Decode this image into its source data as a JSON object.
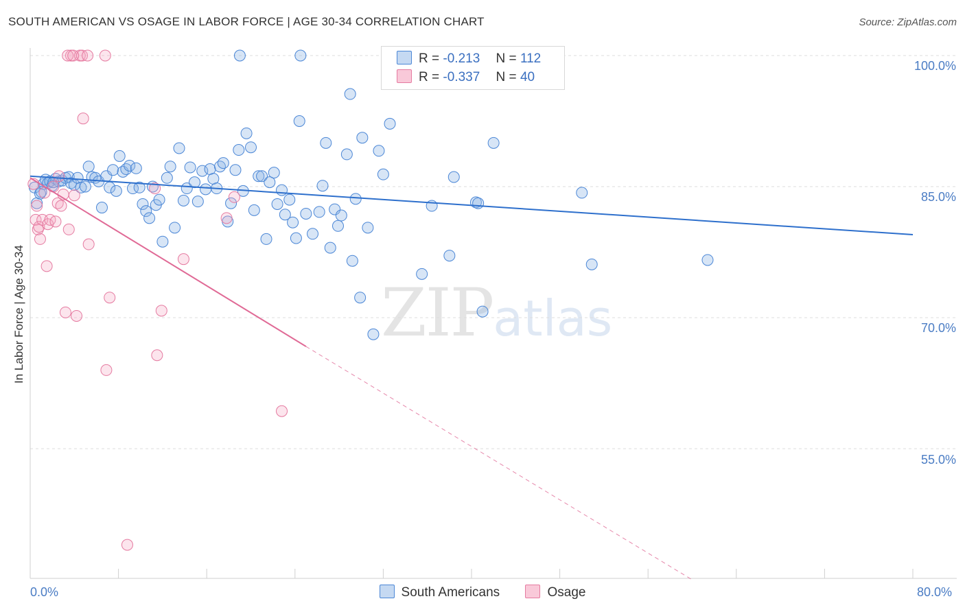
{
  "title": "SOUTH AMERICAN VS OSAGE IN LABOR FORCE | AGE 30-34 CORRELATION CHART",
  "source": "Source: ZipAtlas.com",
  "watermark": {
    "zip": "ZIP",
    "atlas": "atlas"
  },
  "legend": {
    "r_label": "R =",
    "n_label": "N =",
    "series1": {
      "r": "-0.213",
      "n": "112"
    },
    "series2": {
      "r": "-0.337",
      "n": "40"
    }
  },
  "chart_data": {
    "type": "scatter",
    "title": "SOUTH AMERICAN VS OSAGE IN LABOR FORCE | AGE 30-34 CORRELATION CHART",
    "xlabel": "",
    "ylabel": "In Labor Force | Age 30-34",
    "xlim": [
      0,
      80
    ],
    "ylim": [
      40,
      101
    ],
    "x_tick_labels": [
      "0.0%",
      "80.0%"
    ],
    "y_tick_labels": [
      "100.0%",
      "85.0%",
      "70.0%",
      "55.0%"
    ],
    "y_ticks": [
      100,
      85,
      70,
      55
    ],
    "colors": {
      "south_americans": "#4a86d6",
      "osage": "#e57aa0",
      "blue_line": "#2d6fcc",
      "pink_line": "#e06a96"
    },
    "series": [
      {
        "name": "South Americans",
        "trend": {
          "x": [
            0,
            80
          ],
          "y": [
            86.2,
            79.5
          ]
        },
        "points": [
          [
            0.4,
            84.9
          ],
          [
            0.6,
            83.1
          ],
          [
            0.9,
            84.2
          ],
          [
            1.2,
            85.3
          ],
          [
            1.4,
            85.8
          ],
          [
            1.6,
            85.4
          ],
          [
            1.8,
            85.6
          ],
          [
            2.0,
            85.1
          ],
          [
            2.3,
            85.9
          ],
          [
            2.6,
            85.6
          ],
          [
            2.9,
            85.7
          ],
          [
            3.2,
            86.0
          ],
          [
            3.5,
            86.1
          ],
          [
            3.7,
            85.4
          ],
          [
            4.0,
            85.2
          ],
          [
            4.3,
            86.0
          ],
          [
            4.6,
            84.9
          ],
          [
            5.0,
            85.0
          ],
          [
            5.3,
            87.3
          ],
          [
            5.6,
            86.1
          ],
          [
            5.9,
            86.0
          ],
          [
            6.2,
            85.6
          ],
          [
            6.5,
            82.6
          ],
          [
            6.9,
            86.2
          ],
          [
            7.2,
            84.9
          ],
          [
            7.5,
            86.9
          ],
          [
            7.8,
            84.5
          ],
          [
            8.1,
            88.5
          ],
          [
            8.4,
            86.7
          ],
          [
            8.7,
            87.0
          ],
          [
            9.0,
            87.4
          ],
          [
            9.3,
            84.8
          ],
          [
            9.6,
            87.1
          ],
          [
            9.9,
            84.9
          ],
          [
            10.2,
            83.0
          ],
          [
            10.5,
            82.2
          ],
          [
            10.8,
            81.4
          ],
          [
            11.1,
            85.0
          ],
          [
            11.4,
            82.9
          ],
          [
            11.7,
            83.5
          ],
          [
            12.0,
            78.7
          ],
          [
            12.4,
            86.0
          ],
          [
            12.7,
            87.3
          ],
          [
            13.1,
            80.3
          ],
          [
            13.5,
            89.4
          ],
          [
            13.9,
            83.4
          ],
          [
            14.2,
            84.8
          ],
          [
            14.5,
            87.2
          ],
          [
            14.9,
            85.5
          ],
          [
            15.2,
            83.3
          ],
          [
            15.6,
            86.8
          ],
          [
            15.9,
            84.7
          ],
          [
            16.3,
            87.0
          ],
          [
            16.6,
            85.9
          ],
          [
            16.9,
            84.8
          ],
          [
            17.2,
            87.3
          ],
          [
            17.5,
            87.7
          ],
          [
            17.9,
            81.0
          ],
          [
            18.2,
            83.1
          ],
          [
            18.6,
            86.9
          ],
          [
            18.9,
            89.2
          ],
          [
            19.3,
            84.5
          ],
          [
            19.6,
            91.1
          ],
          [
            20.0,
            89.5
          ],
          [
            20.3,
            82.3
          ],
          [
            20.7,
            86.2
          ],
          [
            21.0,
            86.2
          ],
          [
            21.4,
            79.0
          ],
          [
            21.7,
            85.5
          ],
          [
            22.1,
            86.6
          ],
          [
            22.4,
            83.0
          ],
          [
            22.8,
            84.6
          ],
          [
            23.1,
            81.8
          ],
          [
            23.5,
            83.5
          ],
          [
            23.8,
            80.9
          ],
          [
            24.1,
            79.1
          ],
          [
            24.4,
            92.5
          ],
          [
            25.0,
            81.9
          ],
          [
            25.6,
            79.6
          ],
          [
            26.2,
            82.1
          ],
          [
            26.5,
            85.1
          ],
          [
            26.8,
            90.0
          ],
          [
            27.2,
            78.0
          ],
          [
            27.6,
            82.4
          ],
          [
            27.9,
            80.5
          ],
          [
            28.2,
            81.7
          ],
          [
            28.7,
            88.7
          ],
          [
            29.0,
            95.6
          ],
          [
            29.2,
            76.5
          ],
          [
            29.5,
            83.6
          ],
          [
            29.9,
            72.3
          ],
          [
            30.1,
            90.6
          ],
          [
            30.6,
            80.3
          ],
          [
            31.1,
            68.1
          ],
          [
            31.6,
            89.1
          ],
          [
            32.0,
            86.4
          ],
          [
            32.6,
            92.2
          ],
          [
            19.0,
            100.0
          ],
          [
            24.5,
            100.0
          ],
          [
            35.5,
            75.0
          ],
          [
            36.4,
            82.8
          ],
          [
            38.0,
            77.1
          ],
          [
            38.4,
            86.1
          ],
          [
            40.4,
            83.2
          ],
          [
            40.6,
            83.1
          ],
          [
            41.0,
            70.7
          ],
          [
            42.0,
            90.0
          ],
          [
            50.0,
            84.3
          ],
          [
            50.9,
            76.1
          ],
          [
            61.4,
            76.6
          ],
          [
            2.1,
            85.5
          ],
          [
            1.0,
            84.4
          ]
        ]
      },
      {
        "name": "Osage",
        "trend": {
          "x": [
            0,
            25
          ],
          "y": [
            86.0,
            66.7
          ]
        },
        "trend_dashed": {
          "x": [
            25,
            60
          ],
          "y": [
            66.7,
            40.0
          ]
        },
        "points": [
          [
            0.3,
            85.3
          ],
          [
            0.5,
            81.2
          ],
          [
            0.6,
            82.8
          ],
          [
            0.7,
            80.1
          ],
          [
            0.8,
            80.4
          ],
          [
            0.9,
            79.0
          ],
          [
            1.1,
            81.2
          ],
          [
            1.3,
            84.3
          ],
          [
            1.5,
            75.9
          ],
          [
            1.6,
            80.7
          ],
          [
            1.8,
            81.2
          ],
          [
            2.1,
            85.0
          ],
          [
            2.3,
            81.0
          ],
          [
            2.5,
            83.1
          ],
          [
            2.6,
            86.2
          ],
          [
            2.8,
            82.8
          ],
          [
            3.0,
            84.1
          ],
          [
            3.2,
            70.6
          ],
          [
            3.5,
            80.1
          ],
          [
            3.7,
            100.0
          ],
          [
            3.4,
            100.0
          ],
          [
            4.0,
            84.0
          ],
          [
            4.2,
            70.2
          ],
          [
            4.5,
            100.0
          ],
          [
            4.7,
            100.0
          ],
          [
            4.8,
            92.8
          ],
          [
            5.2,
            100.0
          ],
          [
            5.3,
            78.4
          ],
          [
            6.8,
            100.0
          ],
          [
            6.9,
            64.0
          ],
          [
            7.2,
            72.3
          ],
          [
            8.8,
            44.0
          ],
          [
            11.3,
            84.8
          ],
          [
            11.5,
            65.7
          ],
          [
            11.9,
            70.8
          ],
          [
            13.9,
            76.7
          ],
          [
            17.8,
            81.4
          ],
          [
            18.5,
            83.8
          ],
          [
            22.8,
            59.3
          ],
          [
            3.9,
            100.0
          ]
        ]
      }
    ]
  }
}
